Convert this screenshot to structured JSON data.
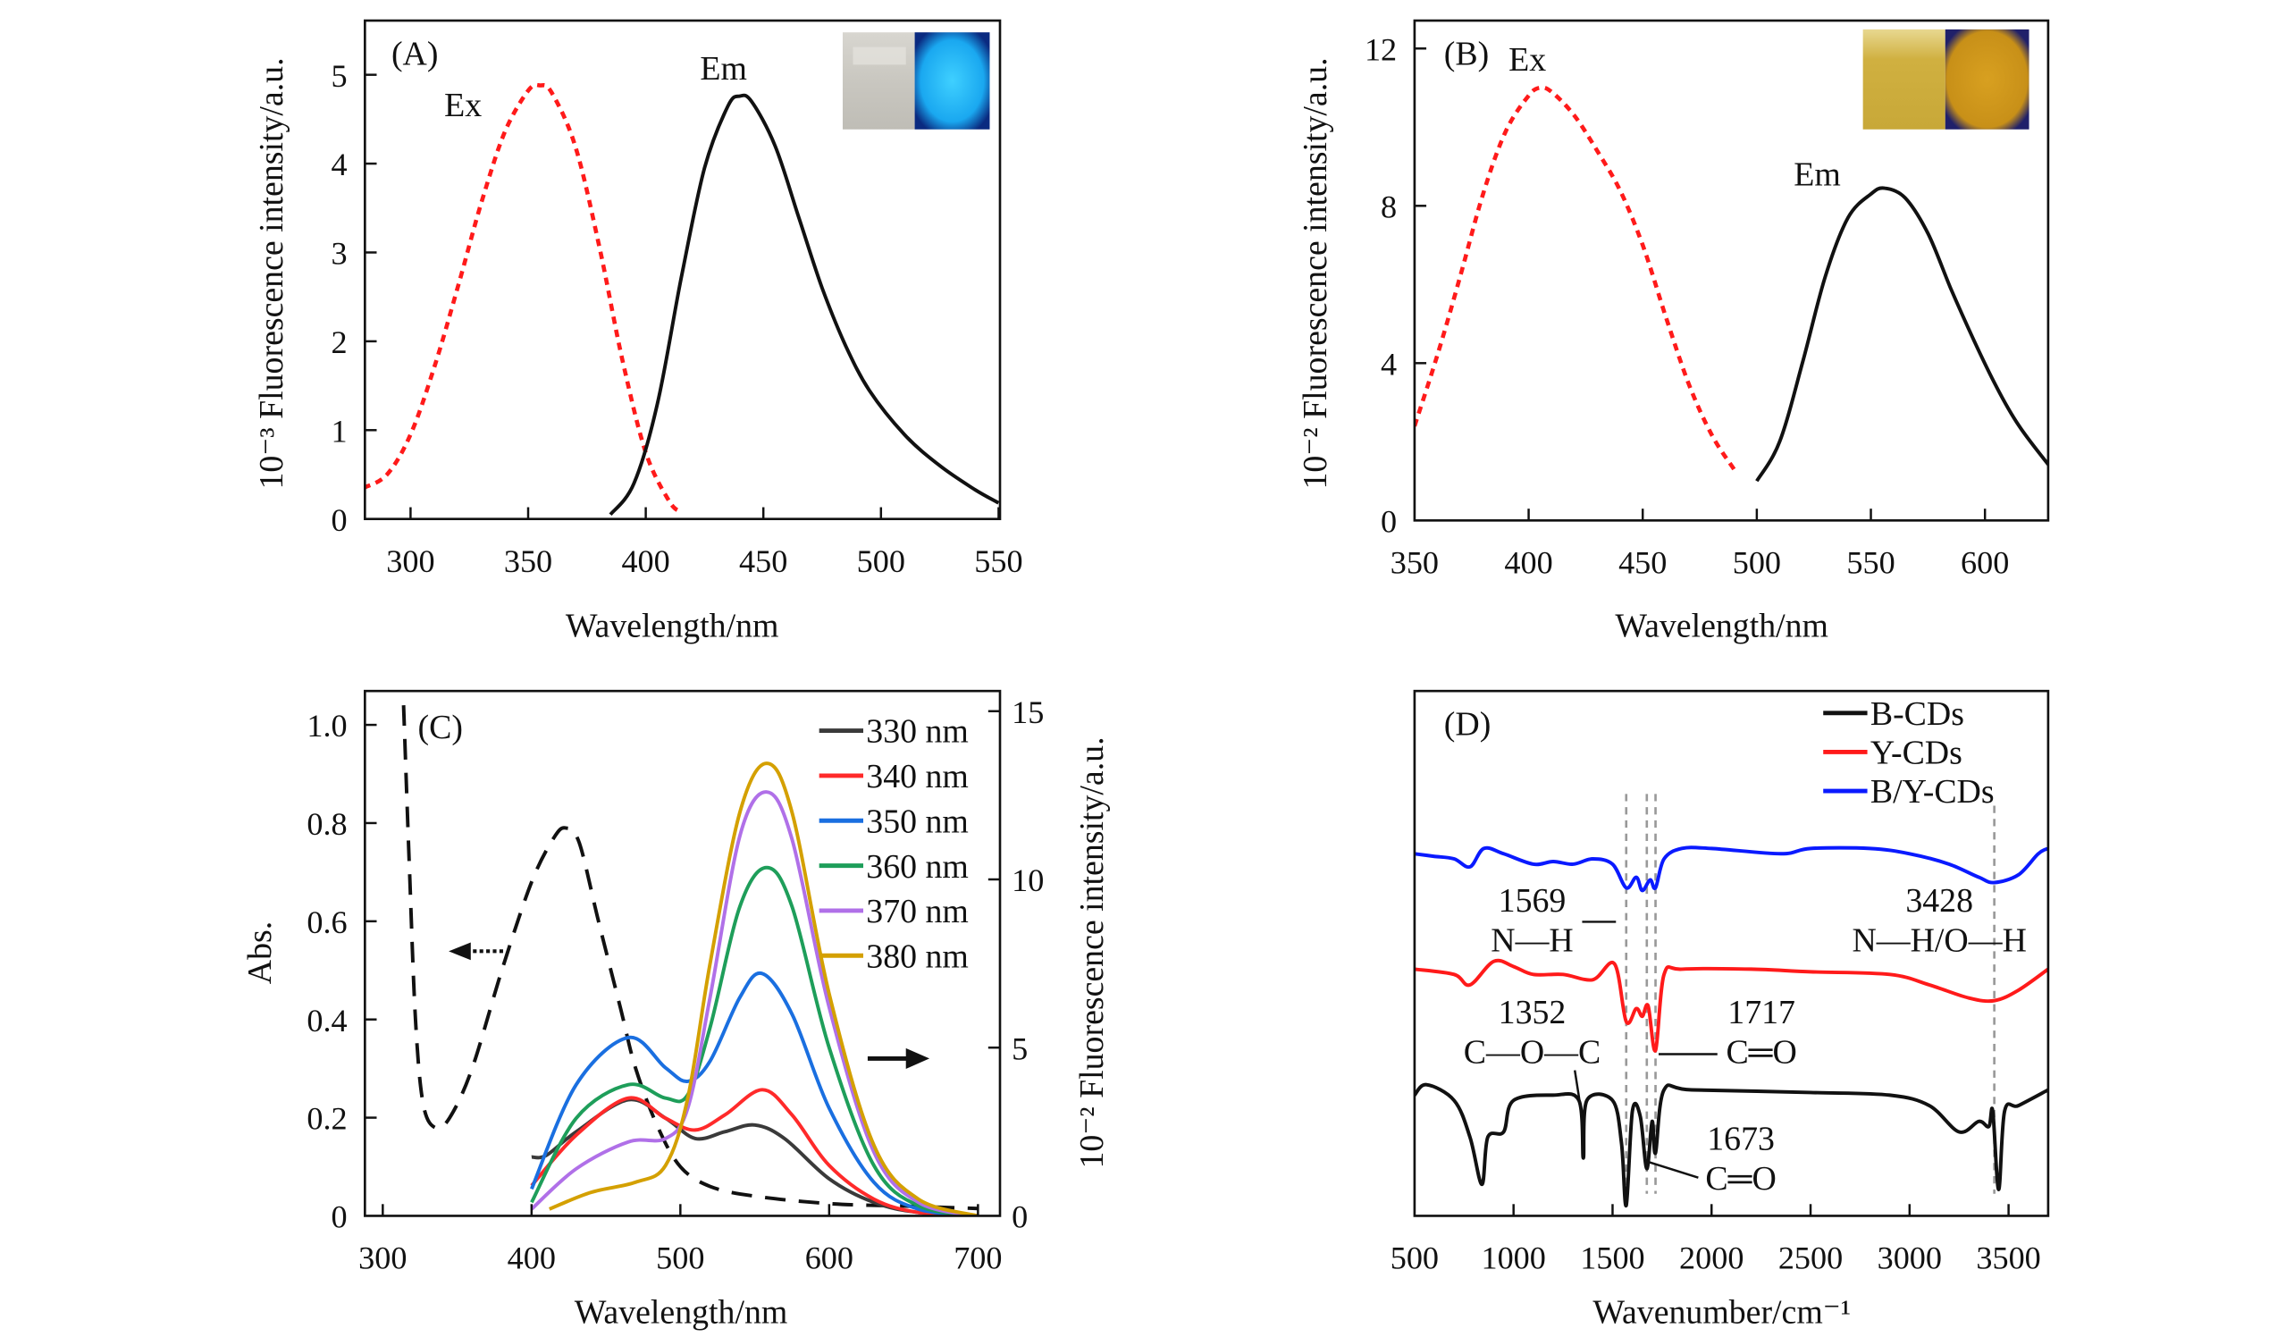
{
  "chart_data": [
    {
      "id": "A",
      "type": "line",
      "panel_label": "(A)",
      "xlabel": "Wavelength/nm",
      "ylabel": "10⁻³ Fluorescence intensity/a.u.",
      "xlim": [
        280.6,
        550.6
      ],
      "ylim": [
        0,
        5.61
      ],
      "xticks": [
        300,
        350,
        400,
        450,
        500,
        550
      ],
      "yticks": [
        0,
        1,
        2,
        3,
        4,
        5
      ],
      "series": [
        {
          "name": "Ex",
          "color": "#ff1a1a",
          "style": "dashed",
          "x": [
            280,
            290,
            300,
            310,
            320,
            330,
            340,
            350,
            355,
            360,
            370,
            380,
            390,
            400,
            410,
            415
          ],
          "y": [
            0.35,
            0.5,
            0.95,
            1.7,
            2.6,
            3.55,
            4.35,
            4.82,
            4.88,
            4.8,
            4.2,
            3.1,
            1.8,
            0.75,
            0.2,
            0.08
          ]
        },
        {
          "name": "Em",
          "color": "#111111",
          "style": "solid",
          "x": [
            385,
            395,
            405,
            415,
            425,
            435,
            440,
            445,
            455,
            465,
            475,
            485,
            495,
            510,
            525,
            540,
            550
          ],
          "y": [
            0.05,
            0.4,
            1.3,
            2.7,
            3.95,
            4.65,
            4.76,
            4.7,
            4.2,
            3.4,
            2.6,
            1.95,
            1.45,
            0.95,
            0.6,
            0.33,
            0.18
          ]
        }
      ],
      "annotations": [
        "Ex",
        "Em"
      ]
    },
    {
      "id": "B",
      "type": "line",
      "panel_label": "(B)",
      "xlabel": "Wavelength/nm",
      "ylabel": "10⁻² Fluorescence intensity/a.u.",
      "xlim": [
        350,
        627.7
      ],
      "ylim": [
        0,
        12.71
      ],
      "xticks": [
        350,
        400,
        450,
        500,
        550,
        600
      ],
      "yticks": [
        0,
        4,
        8,
        12
      ],
      "series": [
        {
          "name": "Ex",
          "color": "#ff1a1a",
          "style": "dashed",
          "x": [
            350,
            360,
            370,
            380,
            390,
            400,
            405,
            410,
            420,
            430,
            440,
            450,
            460,
            470,
            480,
            490
          ],
          "y": [
            2.4,
            4.2,
            6.2,
            8.3,
            9.9,
            10.8,
            11.0,
            10.9,
            10.3,
            9.4,
            8.4,
            7.0,
            5.2,
            3.5,
            2.2,
            1.3
          ]
        },
        {
          "name": "Em",
          "color": "#111111",
          "style": "solid",
          "x": [
            500,
            510,
            520,
            530,
            540,
            550,
            556,
            565,
            575,
            585,
            595,
            605,
            615,
            628
          ],
          "y": [
            1.0,
            2.0,
            4.0,
            6.2,
            7.7,
            8.3,
            8.45,
            8.2,
            7.3,
            5.9,
            4.6,
            3.4,
            2.4,
            1.4
          ]
        }
      ],
      "annotations": [
        "Ex",
        "Em"
      ]
    },
    {
      "id": "C",
      "type": "line",
      "panel_label": "(C)",
      "xlabel": "Wavelength/nm",
      "ylabel": "Abs.",
      "ylabel_right": "10⁻² Fluorescence intensity/a.u.",
      "xlim": [
        288,
        714.8
      ],
      "ylim": [
        0,
        1.069
      ],
      "ylim_right": [
        0,
        15.6
      ],
      "xticks": [
        300,
        400,
        500,
        600,
        700
      ],
      "yticks": [
        "0",
        "0.2",
        "0.4",
        "0.6",
        "0.8",
        "1.0"
      ],
      "yticks_right": [
        0,
        5,
        10,
        15
      ],
      "absorbance": {
        "name": "Abs.",
        "color": "#111111",
        "style": "dashed",
        "axis": "left",
        "x": [
          314,
          318,
          322,
          327,
          335,
          345,
          360,
          380,
          400,
          415,
          423,
          432,
          445,
          460,
          470,
          485,
          500,
          520,
          550,
          600,
          650,
          700
        ],
        "y": [
          1.04,
          0.7,
          0.4,
          0.23,
          0.18,
          0.2,
          0.3,
          0.5,
          0.68,
          0.77,
          0.79,
          0.76,
          0.6,
          0.42,
          0.3,
          0.18,
          0.1,
          0.06,
          0.04,
          0.025,
          0.02,
          0.015
        ]
      },
      "series": [
        {
          "name": "330 nm",
          "color": "#3a3a3a",
          "x": [
            400,
            410,
            430,
            465,
            490,
            510,
            530,
            550,
            570,
            600,
            630,
            660,
            700
          ],
          "y": [
            1.75,
            1.8,
            2.5,
            3.45,
            2.9,
            2.3,
            2.5,
            2.7,
            2.3,
            1.1,
            0.4,
            0.1,
            0
          ]
        },
        {
          "name": "340 nm",
          "color": "#ff2a2a",
          "x": [
            400,
            430,
            465,
            490,
            510,
            530,
            555,
            575,
            600,
            630,
            660,
            700
          ],
          "y": [
            0.9,
            2.4,
            3.5,
            2.9,
            2.55,
            3.0,
            3.75,
            3.0,
            1.5,
            0.5,
            0.1,
            0
          ]
        },
        {
          "name": "350 nm",
          "color": "#1a6fe0",
          "x": [
            400,
            430,
            465,
            490,
            505,
            520,
            540,
            555,
            575,
            600,
            630,
            660,
            700
          ],
          "y": [
            0.8,
            3.9,
            5.3,
            4.4,
            4.0,
            4.6,
            6.5,
            7.2,
            6.0,
            3.2,
            1.0,
            0.2,
            0
          ]
        },
        {
          "name": "360 nm",
          "color": "#1e9e5a",
          "x": [
            400,
            430,
            465,
            490,
            505,
            520,
            540,
            558,
            575,
            600,
            630,
            660,
            700
          ],
          "y": [
            0.4,
            2.9,
            3.9,
            3.5,
            3.6,
            5.6,
            9.2,
            10.35,
            9.2,
            5.0,
            1.5,
            0.3,
            0
          ]
        },
        {
          "name": "370 nm",
          "color": "#b070e8",
          "x": [
            400,
            430,
            465,
            490,
            505,
            520,
            540,
            558,
            575,
            600,
            630,
            660,
            700
          ],
          "y": [
            0.2,
            1.4,
            2.2,
            2.3,
            3.2,
            6.5,
            11.3,
            12.6,
            11.2,
            6.2,
            1.9,
            0.4,
            0
          ]
        },
        {
          "name": "380 nm",
          "color": "#d4a000",
          "x": [
            412,
            440,
            470,
            490,
            505,
            520,
            540,
            558,
            575,
            600,
            630,
            660,
            700
          ],
          "y": [
            0.2,
            0.7,
            1.0,
            1.5,
            3.5,
            7.5,
            12.0,
            13.45,
            12.0,
            6.6,
            2.1,
            0.5,
            0
          ]
        }
      ],
      "legend": "top-right"
    },
    {
      "id": "D",
      "type": "line",
      "panel_label": "(D)",
      "xlabel": "Wavenumber/cm⁻¹",
      "ylabel": "",
      "xlim": [
        500,
        3700
      ],
      "ylim": [
        0,
        100
      ],
      "xticks": [
        500,
        1000,
        1500,
        2000,
        2500,
        3000,
        3500
      ],
      "reference_lines": [
        1569,
        1673,
        1717,
        3428
      ],
      "series": [
        {
          "name": "B-CDs",
          "color": "#111111",
          "x": [
            500,
            560,
            700,
            780,
            840,
            870,
            950,
            1000,
            1200,
            1330,
            1352,
            1370,
            1500,
            1545,
            1569,
            1600,
            1640,
            1673,
            1700,
            1717,
            1760,
            1900,
            2500,
            2900,
            3100,
            3250,
            3350,
            3400,
            3420,
            3450,
            3480,
            3550,
            3700
          ],
          "y": [
            23,
            25,
            22,
            15,
            6,
            15,
            16,
            22,
            23,
            22,
            11,
            22,
            22,
            14,
            2,
            20,
            19,
            9,
            18,
            12,
            24,
            24,
            23.5,
            23,
            21,
            16,
            18,
            17,
            20,
            5,
            20,
            21,
            24
          ]
        },
        {
          "name": "Y-CDs",
          "color": "#ff1a1a",
          "x": [
            500,
            700,
            780,
            900,
            1000,
            1100,
            1250,
            1400,
            1510,
            1569,
            1620,
            1650,
            1680,
            1717,
            1760,
            1850,
            2200,
            2500,
            2900,
            3100,
            3300,
            3428,
            3550,
            3700
          ],
          "y": [
            47,
            46,
            44,
            48.5,
            47.5,
            46,
            46,
            45,
            48,
            37,
            39.5,
            38,
            40,
            31.5,
            46,
            47,
            47,
            46.5,
            46,
            44,
            41.5,
            41,
            43,
            47
          ]
        },
        {
          "name": "B/Y-CDs",
          "color": "#0a1aff",
          "x": [
            500,
            600,
            700,
            780,
            850,
            950,
            1100,
            1200,
            1300,
            1400,
            1500,
            1569,
            1620,
            1650,
            1690,
            1717,
            1760,
            1850,
            2000,
            2350,
            2500,
            2800,
            3000,
            3200,
            3350,
            3428,
            3550,
            3650,
            3700
          ],
          "y": [
            69,
            68.5,
            68,
            66.5,
            70,
            69,
            67,
            67.5,
            67,
            68,
            67,
            62.5,
            64.5,
            62,
            64,
            62.5,
            68,
            70,
            70,
            69,
            70,
            70,
            69,
            67,
            64.5,
            63.5,
            65,
            69,
            70
          ]
        }
      ],
      "legend": "top-right",
      "annotations": {
        "a1569": "1569",
        "a1569_bond": "N—H",
        "a3428": "3428",
        "a3428_bond": "N—H/O—H",
        "a1352": "1352",
        "a1352_bond": "C—O—C",
        "a1717": "1717",
        "a1717_bond": "C═O",
        "a1673": "1673",
        "a1673_bond": "C═O"
      }
    }
  ]
}
